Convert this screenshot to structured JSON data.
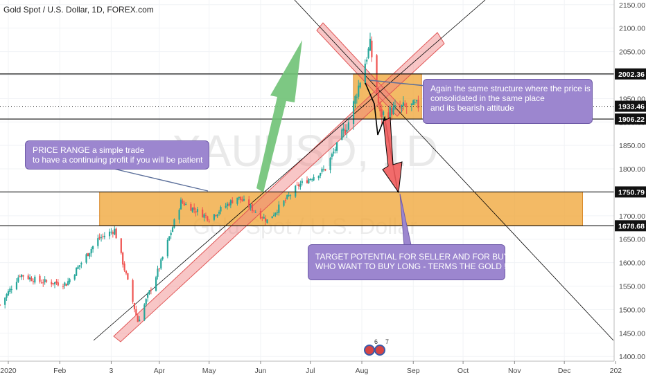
{
  "header": {
    "title": "Gold Spot / U.S. Dollar, 1D, FOREX.com"
  },
  "watermark": {
    "symbol": "XAUUSD, 1D",
    "name": "Gold Spot / U.S. Dollar"
  },
  "annotations": {
    "price_range": [
      "PRICE RANGE a simple trade",
      "to have a continuing profit if you will be patient"
    ],
    "structure": [
      "Again the same structure where the price is",
      "consolidated in the same place",
      "and its bearish attitude"
    ],
    "target": [
      "TARGET POTENTIAL FOR SELLER AND FOR BUYERS",
      "WHO WANT TO BUY LONG - TERMS THE GOLD !!!"
    ]
  },
  "flags": {
    "count_a": "6",
    "count_b": "7"
  },
  "colors": {
    "up": "#26a69a",
    "down": "#ef5350",
    "zone": "#f0a63a",
    "channel": "#f08080",
    "green_arrow": "#6fc275",
    "red_arrow": "#f05b5b",
    "callout": "#9c86cf",
    "line": "#000000"
  },
  "chart_data": {
    "type": "candlestick",
    "symbol": "XAUUSD",
    "timeframe": "1D",
    "y_axis": {
      "range": [
        1390,
        2160
      ],
      "ticks": [
        "2150.00",
        "2100.00",
        "2050.00",
        "2000.00",
        "1950.00",
        "1900.00",
        "1850.00",
        "1800.00",
        "1750.00",
        "1700.00",
        "1650.00",
        "1600.00",
        "1550.00",
        "1500.00",
        "1450.00",
        "1400.00"
      ],
      "tick_values": [
        2150,
        2100,
        2050,
        2000,
        1950,
        1900,
        1850,
        1800,
        1750,
        1700,
        1650,
        1600,
        1550,
        1500,
        1450,
        1400
      ]
    },
    "x_axis": {
      "range": [
        "2019-12-27",
        "2020-12-31"
      ],
      "ticks": [
        {
          "label": "2020",
          "date": "2020-01-01"
        },
        {
          "label": "Feb",
          "date": "2020-02-01"
        },
        {
          "label": "3",
          "date": "2020-03-03"
        },
        {
          "label": "Apr",
          "date": "2020-04-01"
        },
        {
          "label": "May",
          "date": "2020-05-01"
        },
        {
          "label": "Jun",
          "date": "2020-06-01"
        },
        {
          "label": "Jul",
          "date": "2020-07-01"
        },
        {
          "label": "Aug",
          "date": "2020-08-01"
        },
        {
          "label": "Sep",
          "date": "2020-09-01"
        },
        {
          "label": "Oct",
          "date": "2020-10-01"
        },
        {
          "label": "Nov",
          "date": "2020-11-01"
        },
        {
          "label": "Dec",
          "date": "2020-12-01"
        },
        {
          "label": "202",
          "date": "2021-01-01"
        }
      ]
    },
    "price_levels": [
      {
        "label": "2002.36",
        "value": 2002.36,
        "style": "dark"
      },
      {
        "label": "1933.46",
        "value": 1933.46,
        "style": "dotted"
      },
      {
        "label": "1906.22",
        "value": 1906.22,
        "style": "dark"
      },
      {
        "label": "1750.79",
        "value": 1750.79,
        "style": "dark"
      },
      {
        "label": "1678.68",
        "value": 1678.68,
        "style": "dark"
      }
    ],
    "zones": [
      {
        "from": "2020-02-25",
        "to": "2020-12-12",
        "top": 1750.79,
        "bottom": 1678.68
      },
      {
        "from": "2020-07-27",
        "to": "2020-09-06",
        "top": 2002.36,
        "bottom": 1906.22
      }
    ],
    "close_path": [
      [
        "2019-12-27",
        1510
      ],
      [
        "2020-01-08",
        1575
      ],
      [
        "2020-01-20",
        1560
      ],
      [
        "2020-02-05",
        1555
      ],
      [
        "2020-02-24",
        1650
      ],
      [
        "2020-03-05",
        1670
      ],
      [
        "2020-03-19",
        1475
      ],
      [
        "2020-04-01",
        1590
      ],
      [
        "2020-04-14",
        1730
      ],
      [
        "2020-05-01",
        1695
      ],
      [
        "2020-05-18",
        1740
      ],
      [
        "2020-06-05",
        1690
      ],
      [
        "2020-06-24",
        1765
      ],
      [
        "2020-07-10",
        1800
      ],
      [
        "2020-07-24",
        1900
      ],
      [
        "2020-08-06",
        2065
      ],
      [
        "2020-08-12",
        1915
      ],
      [
        "2020-08-24",
        1930
      ],
      [
        "2020-09-04",
        1935
      ]
    ]
  }
}
